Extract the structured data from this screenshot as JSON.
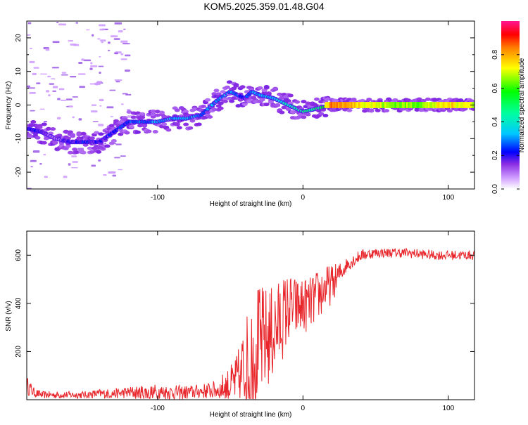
{
  "title": "KOM5.2025.359.01.48.G04",
  "colors": {
    "snr_line": "#e8262b",
    "axis": "#000000"
  },
  "chart_data": [
    {
      "type": "heatmap",
      "xlabel": "Height of straight line (km)",
      "ylabel": "Frequency (Hz)",
      "xlim": [
        -190,
        118
      ],
      "ylim": [
        -25,
        25
      ],
      "xticks": [
        {
          "v": -100,
          "label": "-100"
        },
        {
          "v": 0,
          "label": "0"
        },
        {
          "v": 100,
          "label": "100"
        }
      ],
      "yticks": [
        {
          "v": 20,
          "label": "20"
        },
        {
          "v": 10,
          "label": "10"
        },
        {
          "v": 0,
          "label": "0"
        },
        {
          "v": -10,
          "label": "-10"
        },
        {
          "v": -20,
          "label": "-20"
        }
      ],
      "colorbar": {
        "label": "Normalized spectral amplitude",
        "range": [
          0,
          1
        ],
        "ticks": [
          {
            "v": 0.0,
            "label": "0.0"
          },
          {
            "v": 0.2,
            "label": "0.2"
          },
          {
            "v": 0.4,
            "label": "0.4"
          },
          {
            "v": 0.6,
            "label": "0.6"
          },
          {
            "v": 0.8,
            "label": "0.8"
          }
        ]
      },
      "ridge": {
        "x": [
          -190,
          -180,
          -170,
          -160,
          -150,
          -140,
          -130,
          -120,
          -110,
          -100,
          -90,
          -80,
          -70,
          -60,
          -50,
          -40,
          -35,
          -30,
          -20,
          -10,
          0,
          10,
          20,
          40,
          60,
          80,
          100,
          118
        ],
        "freq": [
          -7,
          -8,
          -10,
          -11,
          -11,
          -11,
          -8,
          -5,
          -5,
          -5,
          -4,
          -4,
          -3,
          1,
          4,
          2,
          4,
          3,
          2,
          0,
          -2,
          -1,
          0,
          0,
          0,
          0,
          0,
          0
        ],
        "amp": [
          0.2,
          0.15,
          0.1,
          0.15,
          0.2,
          0.15,
          0.2,
          0.25,
          0.25,
          0.3,
          0.3,
          0.3,
          0.25,
          0.3,
          0.3,
          0.2,
          0.3,
          0.3,
          0.35,
          0.4,
          0.45,
          0.5,
          0.7,
          0.6,
          0.5,
          0.5,
          0.6,
          0.55
        ]
      }
    },
    {
      "type": "line",
      "xlabel": "Height of straight line (km)",
      "ylabel": "SNR (v/v)",
      "xlim": [
        -190,
        118
      ],
      "ylim": [
        0,
        700
      ],
      "xticks": [
        {
          "v": -100,
          "label": "-100"
        },
        {
          "v": 0,
          "label": "0"
        },
        {
          "v": 100,
          "label": "100"
        }
      ],
      "yticks": [
        {
          "v": 600,
          "label": "600"
        },
        {
          "v": 400,
          "label": "400"
        },
        {
          "v": 200,
          "label": "200"
        }
      ],
      "series": [
        {
          "x": [
            -190,
            -185,
            -180,
            -170,
            -160,
            -150,
            -140,
            -130,
            -120,
            -110,
            -100,
            -90,
            -80,
            -70,
            -60,
            -50,
            -45,
            -40,
            -35,
            -30,
            -25,
            -20,
            -15,
            -10,
            -5,
            0,
            5,
            10,
            15,
            20,
            25,
            30,
            40,
            50,
            60,
            70,
            80,
            90,
            100,
            110,
            118
          ],
          "values": [
            60,
            30,
            20,
            20,
            20,
            20,
            25,
            25,
            30,
            30,
            30,
            30,
            30,
            35,
            40,
            60,
            80,
            130,
            180,
            230,
            250,
            280,
            330,
            380,
            380,
            390,
            400,
            430,
            460,
            480,
            520,
            560,
            600,
            610,
            610,
            610,
            605,
            600,
            600,
            600,
            600
          ],
          "noise": [
            40,
            20,
            15,
            15,
            15,
            15,
            20,
            20,
            25,
            35,
            35,
            30,
            30,
            30,
            40,
            80,
            120,
            200,
            250,
            250,
            220,
            200,
            180,
            150,
            130,
            120,
            110,
            110,
            100,
            80,
            50,
            30,
            25,
            20,
            20,
            20,
            20,
            20,
            20,
            20,
            20
          ]
        }
      ]
    }
  ]
}
